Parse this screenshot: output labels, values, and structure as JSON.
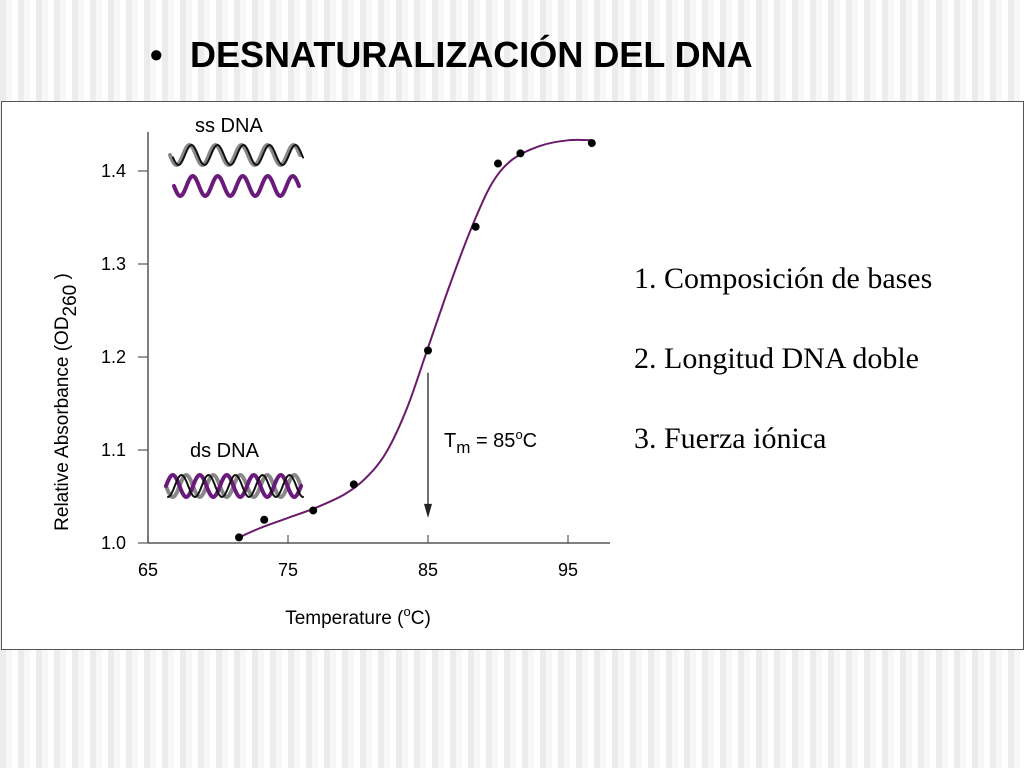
{
  "slide": {
    "bullet": "•",
    "title": "DESNATURALIZACIÓN DEL DNA"
  },
  "factors": [
    "1. Composición de bases",
    "2. Longitud DNA doble",
    "3. Fuerza iónica"
  ],
  "colors": {
    "curve": "#6a1a6a",
    "strand_purple": "#6a1a7a",
    "strand_gray": "#888888",
    "strand_black": "#111111"
  },
  "chart_data": {
    "type": "scatter",
    "xlabel": {
      "main": "Temperature (",
      "sup": "o",
      "end": "C)"
    },
    "ylabel": {
      "main": "Relative Absorbance (OD",
      "sub": "260",
      "end": " )"
    },
    "xlim": [
      65,
      98
    ],
    "ylim": [
      1.0,
      1.45
    ],
    "x_ticks": [
      65,
      75,
      85,
      95
    ],
    "y_ticks": [
      1.0,
      1.1,
      1.2,
      1.3,
      1.4
    ],
    "y_tick_labels": [
      "1.0",
      "1.1",
      "1.2",
      "1.3",
      "1.4"
    ],
    "points": [
      {
        "x": 71.5,
        "y": 1.006
      },
      {
        "x": 73.3,
        "y": 1.025
      },
      {
        "x": 76.8,
        "y": 1.035
      },
      {
        "x": 79.7,
        "y": 1.063
      },
      {
        "x": 85.0,
        "y": 1.207
      },
      {
        "x": 88.4,
        "y": 1.34
      },
      {
        "x": 90.0,
        "y": 1.408
      },
      {
        "x": 91.6,
        "y": 1.419
      },
      {
        "x": 96.7,
        "y": 1.43
      }
    ],
    "fit_curve": [
      {
        "x": 71.5,
        "y": 1.006
      },
      {
        "x": 73.0,
        "y": 1.016
      },
      {
        "x": 75.0,
        "y": 1.027
      },
      {
        "x": 77.0,
        "y": 1.038
      },
      {
        "x": 79.0,
        "y": 1.052
      },
      {
        "x": 80.5,
        "y": 1.069
      },
      {
        "x": 82.0,
        "y": 1.097
      },
      {
        "x": 83.5,
        "y": 1.145
      },
      {
        "x": 85.0,
        "y": 1.21
      },
      {
        "x": 86.5,
        "y": 1.275
      },
      {
        "x": 88.0,
        "y": 1.335
      },
      {
        "x": 89.5,
        "y": 1.385
      },
      {
        "x": 91.0,
        "y": 1.412
      },
      {
        "x": 93.0,
        "y": 1.427
      },
      {
        "x": 95.0,
        "y": 1.433
      },
      {
        "x": 96.7,
        "y": 1.433
      }
    ],
    "tm": {
      "value": 85,
      "label_t": "T",
      "label_sub": "m",
      "label_rest": " = 85",
      "label_deg": "o",
      "label_unit": "C",
      "arrow_from_y": 1.183,
      "arrow_to_y": 1.027
    },
    "annotations": {
      "ss": "ss DNA",
      "ds": "ds DNA"
    }
  }
}
